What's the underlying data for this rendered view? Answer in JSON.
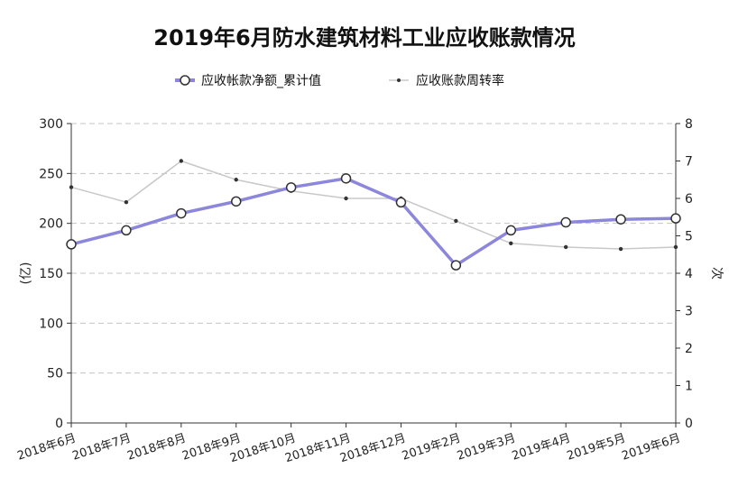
{
  "chart_data": {
    "type": "line",
    "title": "2019年6月防水建筑材料工业应收账款情况",
    "categories": [
      "2018年6月",
      "2018年7月",
      "2018年8月",
      "2018年9月",
      "2018年10月",
      "2018年11月",
      "2018年12月",
      "2019年2月",
      "2019年3月",
      "2019年4月",
      "2019年5月",
      "2019年6月"
    ],
    "ylabel_left": "(亿)",
    "ylabel_right": "次",
    "ylim_left": [
      0,
      300
    ],
    "ylim_right": [
      0,
      8
    ],
    "yticks_left": [
      "0",
      "50",
      "100",
      "150",
      "200",
      "250",
      "300"
    ],
    "yticks_right": [
      "0",
      "1",
      "2",
      "3",
      "4",
      "5",
      "6",
      "7",
      "8"
    ],
    "grid": true,
    "legend_position": "top-center",
    "series": [
      {
        "name": "应收帐款净额_累计值",
        "axis": "left",
        "color": "#8c86dc",
        "values": [
          179,
          193,
          210,
          222,
          236,
          245,
          221,
          158,
          193,
          201,
          204,
          205
        ]
      },
      {
        "name": "应收账款周转率",
        "axis": "right",
        "color": "#c8c8c8",
        "values": [
          6.3,
          5.9,
          7.0,
          6.5,
          6.2,
          6.0,
          6.0,
          5.4,
          4.8,
          4.7,
          4.65,
          4.7
        ]
      }
    ]
  }
}
